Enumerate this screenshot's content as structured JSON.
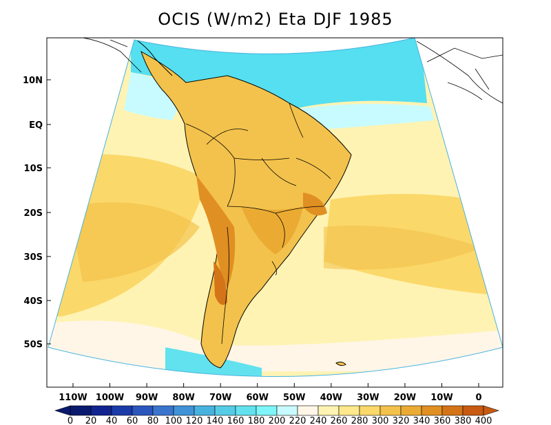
{
  "title": "OCIS (W/m2) Eta DJF 1985",
  "lat_labels": [
    "10N",
    "EQ",
    "10S",
    "20S",
    "30S",
    "40S",
    "50S"
  ],
  "lon_labels": [
    "110W",
    "100W",
    "90W",
    "80W",
    "70W",
    "60W",
    "50W",
    "40W",
    "30W",
    "20W",
    "10W",
    "0"
  ],
  "colorbar": {
    "labels": [
      "0",
      "20",
      "40",
      "60",
      "80",
      "100",
      "120",
      "140",
      "160",
      "180",
      "200",
      "220",
      "240",
      "260",
      "280",
      "300",
      "320",
      "340",
      "360",
      "380",
      "400"
    ],
    "colors": [
      "#0a1a6e",
      "#10238f",
      "#1a3aa8",
      "#2a56bd",
      "#3b74cd",
      "#3f93d6",
      "#48b2de",
      "#55cce6",
      "#62e2ee",
      "#7ef5f8",
      "#c8fbff",
      "#fff6e8",
      "#fff3b3",
      "#ffe98c",
      "#fbd86a",
      "#f3c24c",
      "#ebab33",
      "#e08f22",
      "#d47418",
      "#c85a12"
    ]
  },
  "colors": {
    "ocean_bg": "#fff3b3",
    "deep_cyan": "#55dff0",
    "light_cyan": "#c8fbff",
    "warm_land": "#f3c24c",
    "hot_land": "#e08f22",
    "hottest": "#d47418"
  }
}
